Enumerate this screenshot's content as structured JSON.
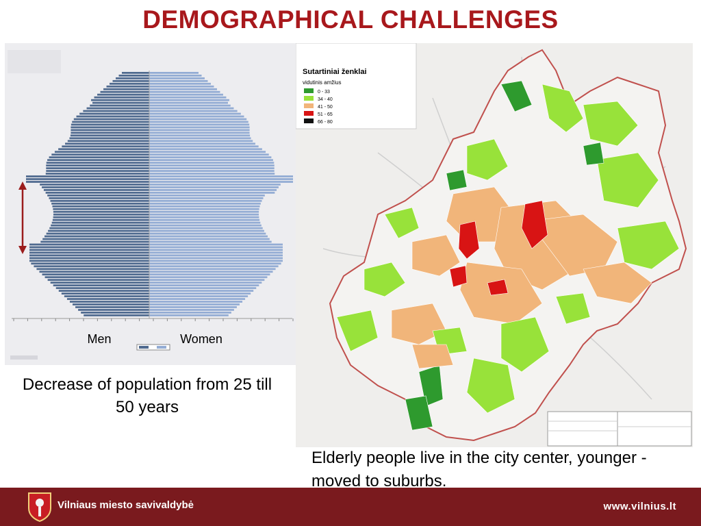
{
  "slide": {
    "title": "DEMOGRAPHICAL CHALLENGES",
    "caption_left": "Decrease of population from 25 till 50 years",
    "caption_right": "Elderly people live in the city center, younger  - moved to suburbs.",
    "footer_name": "Vilniaus miesto savivaldybė",
    "footer_url": "www.vilnius.lt"
  },
  "pyramid": {
    "label_men": "Men",
    "label_women": "Women",
    "colors": {
      "men": "#4f6a8f",
      "women": "#93acd4",
      "arrow": "#9b1c1c"
    }
  },
  "map": {
    "legend_title": "Sutartiniai ženklai",
    "legend_subtitle": "vidutinis amžius",
    "legend_items": [
      {
        "label": "0 - 33",
        "color": "#2e9a2e"
      },
      {
        "label": "34 - 40",
        "color": "#98e23a"
      },
      {
        "label": "41 - 50",
        "color": "#f1b57a"
      },
      {
        "label": "51 - 65",
        "color": "#d81414"
      },
      {
        "label": "66 - 80",
        "color": "#111111"
      }
    ],
    "boundary_color": "#c0504d"
  }
}
